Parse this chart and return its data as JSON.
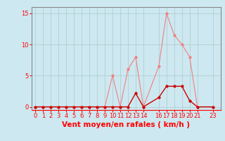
{
  "title": "",
  "xlabel": "Vent moyen/en rafales ( km/h )",
  "ylabel": "",
  "bg_color": "#cde8f0",
  "grid_color": "#aacccc",
  "x_ticks": [
    0,
    1,
    2,
    3,
    4,
    5,
    6,
    7,
    8,
    9,
    10,
    11,
    12,
    13,
    14,
    16,
    17,
    18,
    19,
    20,
    21,
    23
  ],
  "ylim": [
    -0.5,
    16
  ],
  "xlim": [
    -0.5,
    24
  ],
  "yticks": [
    0,
    5,
    10,
    15
  ],
  "line_light_x": [
    0,
    1,
    2,
    3,
    4,
    5,
    6,
    7,
    8,
    9,
    10,
    11,
    12,
    13,
    14,
    16,
    17,
    18,
    19,
    20,
    21,
    23
  ],
  "line_light_y": [
    0,
    0,
    0,
    0,
    0,
    0,
    0,
    0,
    0,
    0,
    5,
    0,
    6,
    8,
    0,
    6.5,
    15,
    11.5,
    10,
    8,
    0,
    0
  ],
  "line_dark_x": [
    0,
    1,
    2,
    3,
    4,
    5,
    6,
    7,
    8,
    9,
    10,
    11,
    12,
    13,
    14,
    16,
    17,
    18,
    19,
    20,
    21,
    23
  ],
  "line_dark_y": [
    0,
    0,
    0,
    0,
    0,
    0,
    0,
    0,
    0,
    0,
    0,
    0,
    0,
    2.2,
    0,
    1.5,
    3.3,
    3.3,
    3.3,
    1,
    0,
    0
  ],
  "light_color": "#f08080",
  "dark_color": "#cc0000",
  "marker_size": 2,
  "tick_fontsize": 6,
  "label_fontsize": 7.5
}
